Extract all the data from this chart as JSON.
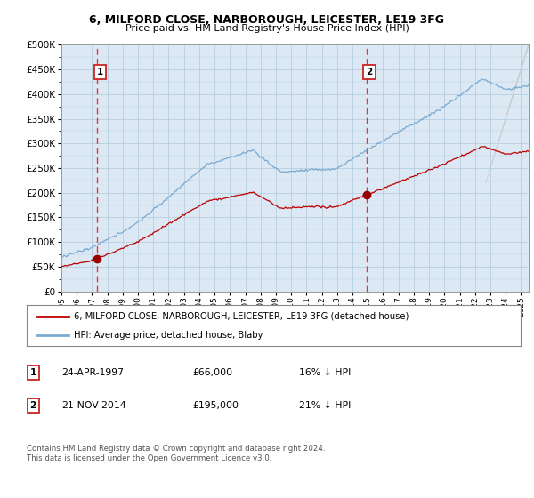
{
  "title_line1": "6, MILFORD CLOSE, NARBOROUGH, LEICESTER, LE19 3FG",
  "title_line2": "Price paid vs. HM Land Registry's House Price Index (HPI)",
  "plot_bg_color": "#dce9f5",
  "ylim": [
    0,
    500000
  ],
  "xlim_start": 1995.0,
  "xlim_end": 2025.5,
  "transaction1": {
    "date_num": 1997.31,
    "price": 66000,
    "label": "1",
    "date_str": "24-APR-1997",
    "pct": "16% ↓ HPI"
  },
  "transaction2": {
    "date_num": 2014.9,
    "price": 195000,
    "label": "2",
    "date_str": "21-NOV-2014",
    "pct": "21% ↓ HPI"
  },
  "legend_red": "6, MILFORD CLOSE, NARBOROUGH, LEICESTER, LE19 3FG (detached house)",
  "legend_blue": "HPI: Average price, detached house, Blaby",
  "footnote": "Contains HM Land Registry data © Crown copyright and database right 2024.\nThis data is licensed under the Open Government Licence v3.0.",
  "table_rows": [
    {
      "num": "1",
      "date": "24-APR-1997",
      "price": "£66,000",
      "pct": "16% ↓ HPI"
    },
    {
      "num": "2",
      "date": "21-NOV-2014",
      "price": "£195,000",
      "pct": "21% ↓ HPI"
    }
  ],
  "red_line_color": "#bb0000",
  "blue_line_color": "#7aaad0",
  "dashed_line_color": "#ee3333",
  "marker_color": "#990000",
  "grid_color": "#b8cfe0",
  "border_color": "#999999"
}
